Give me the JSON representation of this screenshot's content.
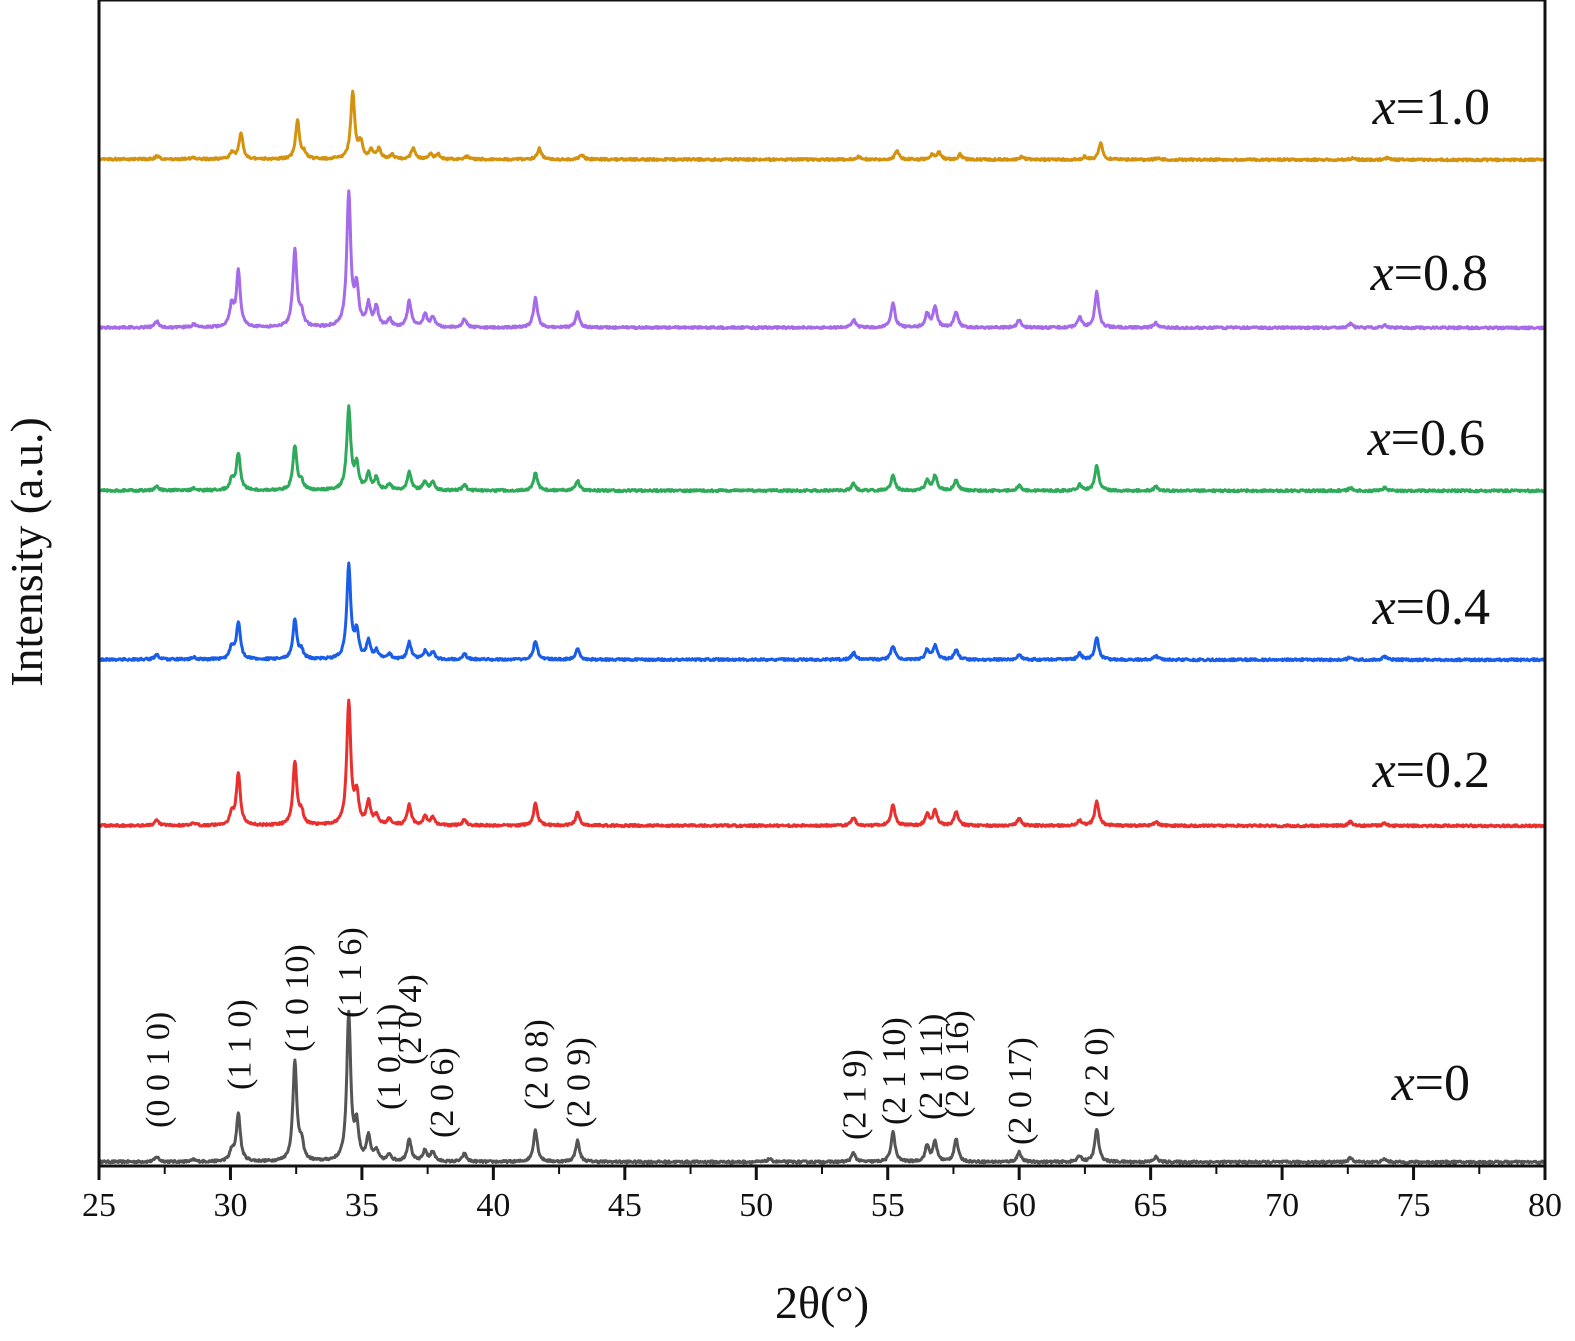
{
  "chart_data": {
    "type": "line",
    "xlabel": "2θ(°)",
    "ylabel": "Intensity (a.u.)",
    "xlim": [
      25,
      80
    ],
    "xticks": [
      25,
      30,
      35,
      40,
      45,
      50,
      55,
      60,
      65,
      70,
      75,
      80
    ],
    "y_ticks_shown": false,
    "grid": false,
    "legend": "labels at right end of each trace",
    "stacked_offset_traces": true,
    "peak_hkl_labels": [
      {
        "x": 27.2,
        "label": "(0 0 1 0)"
      },
      {
        "x": 30.3,
        "label": "(1 1 0)"
      },
      {
        "x": 32.5,
        "label": "(1 0 10)"
      },
      {
        "x": 34.5,
        "label": "(1 1 6)"
      },
      {
        "x": 36.0,
        "label": "(1 0 11)"
      },
      {
        "x": 36.8,
        "label": "(2 0 4)"
      },
      {
        "x": 38.0,
        "label": "(2 0 6)"
      },
      {
        "x": 41.6,
        "label": "(2 0 8)"
      },
      {
        "x": 43.2,
        "label": "(2 0 9)"
      },
      {
        "x": 53.7,
        "label": "(2 1 9)"
      },
      {
        "x": 55.2,
        "label": "(2 1 10)"
      },
      {
        "x": 56.6,
        "label": "(2 1 11)"
      },
      {
        "x": 57.6,
        "label": "(2 0 16)"
      },
      {
        "x": 60.0,
        "label": "(2 0 17)"
      },
      {
        "x": 62.9,
        "label": "(2 2 0)"
      }
    ],
    "series": [
      {
        "name": "x=0",
        "var": "x",
        "value_text": "=0",
        "color": "#555555",
        "baseline": 0.2,
        "baseline_slope": -0.03,
        "peaks": [
          [
            27.2,
            5
          ],
          [
            28.6,
            2
          ],
          [
            30.05,
            10
          ],
          [
            30.3,
            48
          ],
          [
            32.45,
            100
          ],
          [
            32.7,
            17
          ],
          [
            34.5,
            147
          ],
          [
            34.8,
            34
          ],
          [
            35.25,
            25
          ],
          [
            35.55,
            10
          ],
          [
            36.05,
            7
          ],
          [
            36.8,
            23
          ],
          [
            37.4,
            11
          ],
          [
            37.7,
            10
          ],
          [
            38.9,
            8
          ],
          [
            41.6,
            32
          ],
          [
            43.2,
            21
          ],
          [
            50.5,
            3
          ],
          [
            53.7,
            9
          ],
          [
            55.2,
            30
          ],
          [
            56.5,
            16
          ],
          [
            56.8,
            20
          ],
          [
            57.6,
            23
          ],
          [
            60.0,
            10
          ],
          [
            62.3,
            6
          ],
          [
            62.95,
            33
          ],
          [
            65.2,
            5
          ],
          [
            72.6,
            4
          ],
          [
            73.9,
            3
          ]
        ]
      },
      {
        "name": "x=0.2",
        "var": "x",
        "value_text": "=0.2",
        "color": "#e8312f",
        "baseline": 0.5,
        "baseline_slope": -0.03,
        "peaks": [
          [
            27.2,
            5
          ],
          [
            28.6,
            2
          ],
          [
            30.05,
            11
          ],
          [
            30.3,
            52
          ],
          [
            32.45,
            63
          ],
          [
            32.7,
            12
          ],
          [
            34.5,
            123
          ],
          [
            34.8,
            30
          ],
          [
            35.25,
            23
          ],
          [
            35.55,
            10
          ],
          [
            36.05,
            7
          ],
          [
            36.8,
            20
          ],
          [
            37.4,
            9
          ],
          [
            37.7,
            8
          ],
          [
            38.9,
            6
          ],
          [
            41.6,
            22
          ],
          [
            43.2,
            13
          ],
          [
            53.7,
            8
          ],
          [
            55.2,
            21
          ],
          [
            56.5,
            11
          ],
          [
            56.8,
            16
          ],
          [
            57.6,
            14
          ],
          [
            60.0,
            7
          ],
          [
            62.3,
            5
          ],
          [
            62.95,
            25
          ],
          [
            65.2,
            4
          ],
          [
            72.6,
            4
          ],
          [
            73.9,
            3
          ]
        ]
      },
      {
        "name": "x=0.4",
        "var": "x",
        "value_text": "=0.4",
        "color": "#1a5ee8",
        "baseline": 0.5,
        "baseline_slope": -0.03,
        "peaks": [
          [
            27.2,
            5
          ],
          [
            28.6,
            2
          ],
          [
            30.05,
            12
          ],
          [
            30.3,
            37
          ],
          [
            32.45,
            40
          ],
          [
            32.7,
            8
          ],
          [
            34.5,
            93
          ],
          [
            34.8,
            26
          ],
          [
            35.25,
            18
          ],
          [
            35.55,
            8
          ],
          [
            36.05,
            5
          ],
          [
            36.8,
            17
          ],
          [
            37.4,
            8
          ],
          [
            37.7,
            7
          ],
          [
            38.9,
            6
          ],
          [
            41.6,
            19
          ],
          [
            43.2,
            11
          ],
          [
            53.7,
            7
          ],
          [
            55.2,
            14
          ],
          [
            56.5,
            10
          ],
          [
            56.8,
            14
          ],
          [
            57.6,
            10
          ],
          [
            60.0,
            5
          ],
          [
            62.3,
            6
          ],
          [
            62.95,
            22
          ],
          [
            65.2,
            4
          ],
          [
            72.6,
            3
          ],
          [
            73.9,
            3
          ]
        ]
      },
      {
        "name": "x=0.6",
        "var": "x",
        "value_text": "=0.6",
        "color": "#2eaa5a",
        "baseline": 0.5,
        "baseline_slope": -0.03,
        "peaks": [
          [
            27.2,
            4
          ],
          [
            28.6,
            2
          ],
          [
            30.05,
            10
          ],
          [
            30.3,
            37
          ],
          [
            32.45,
            44
          ],
          [
            32.7,
            8
          ],
          [
            34.5,
            82
          ],
          [
            34.8,
            24
          ],
          [
            35.25,
            16
          ],
          [
            35.55,
            12
          ],
          [
            36.05,
            6
          ],
          [
            36.8,
            18
          ],
          [
            37.4,
            9
          ],
          [
            37.7,
            8
          ],
          [
            38.9,
            6
          ],
          [
            41.6,
            18
          ],
          [
            43.2,
            10
          ],
          [
            53.7,
            7
          ],
          [
            55.2,
            15
          ],
          [
            56.5,
            10
          ],
          [
            56.8,
            15
          ],
          [
            57.6,
            11
          ],
          [
            60.0,
            5
          ],
          [
            62.3,
            6
          ],
          [
            62.95,
            25
          ],
          [
            65.2,
            4
          ],
          [
            72.6,
            3
          ],
          [
            73.9,
            3
          ]
        ]
      },
      {
        "name": "x=0.8",
        "var": "x",
        "value_text": "=0.8",
        "color": "#a56be8",
        "baseline": 0.5,
        "baseline_slope": -0.03,
        "peaks": [
          [
            27.2,
            6
          ],
          [
            28.6,
            3
          ],
          [
            30.05,
            22
          ],
          [
            30.3,
            55
          ],
          [
            32.45,
            78
          ],
          [
            32.7,
            13
          ],
          [
            34.5,
            133
          ],
          [
            34.8,
            38
          ],
          [
            35.25,
            22
          ],
          [
            35.55,
            20
          ],
          [
            36.05,
            8
          ],
          [
            36.8,
            26
          ],
          [
            37.4,
            13
          ],
          [
            37.7,
            10
          ],
          [
            38.9,
            8
          ],
          [
            41.6,
            30
          ],
          [
            43.2,
            15
          ],
          [
            53.7,
            8
          ],
          [
            55.2,
            25
          ],
          [
            56.5,
            14
          ],
          [
            56.8,
            20
          ],
          [
            57.6,
            16
          ],
          [
            60.0,
            8
          ],
          [
            62.3,
            10
          ],
          [
            62.95,
            36
          ],
          [
            65.2,
            5
          ],
          [
            72.6,
            4
          ],
          [
            73.9,
            3
          ]
        ]
      },
      {
        "name": "x=1.0",
        "var": "x",
        "value_text": "=1.0",
        "color": "#d4930f",
        "baseline": 0.8,
        "baseline_slope": -0.06,
        "peaks": [
          [
            27.2,
            3
          ],
          [
            28.6,
            2
          ],
          [
            30.05,
            7
          ],
          [
            30.4,
            26
          ],
          [
            32.55,
            38
          ],
          [
            32.8,
            6
          ],
          [
            34.65,
            66
          ],
          [
            34.95,
            16
          ],
          [
            35.35,
            9
          ],
          [
            35.65,
            10
          ],
          [
            36.15,
            4
          ],
          [
            36.95,
            11
          ],
          [
            37.6,
            5
          ],
          [
            37.9,
            5
          ],
          [
            39.0,
            3
          ],
          [
            41.75,
            11
          ],
          [
            43.35,
            5
          ],
          [
            53.9,
            3
          ],
          [
            55.35,
            9
          ],
          [
            56.7,
            5
          ],
          [
            56.95,
            7
          ],
          [
            57.75,
            5
          ],
          [
            60.1,
            3
          ],
          [
            62.5,
            3
          ],
          [
            63.1,
            16
          ],
          [
            65.3,
            2
          ],
          [
            72.7,
            2
          ],
          [
            74.0,
            2
          ]
        ]
      }
    ]
  }
}
